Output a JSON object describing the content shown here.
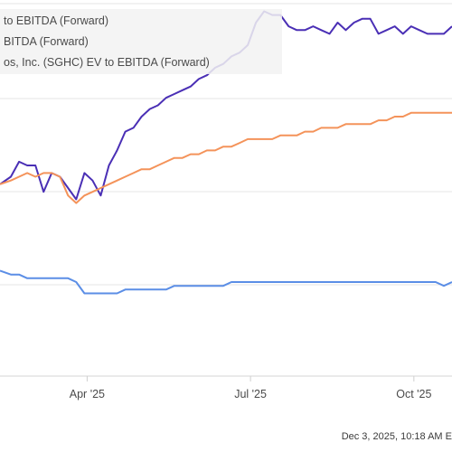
{
  "chart_data": {
    "type": "line",
    "title": "",
    "xlabel": "",
    "ylabel": "",
    "x_tick_labels": [
      "Apr '25",
      "Jul '25",
      "Oct '25"
    ],
    "x_tick_positions": [
      1.6,
      4.6,
      7.6
    ],
    "xlim": [
      0,
      8.3
    ],
    "ylim": [
      0,
      100
    ],
    "grid": "horizontal",
    "legend_placement": "top-left",
    "footer": "Dec 3, 2025, 10:18 AM E",
    "series": [
      {
        "name": "to EBITDA (Forward)",
        "color": "#4a2fb5",
        "x": [
          0,
          0.2,
          0.35,
          0.5,
          0.65,
          0.8,
          0.95,
          1.1,
          1.25,
          1.4,
          1.55,
          1.7,
          1.85,
          2.0,
          2.15,
          2.3,
          2.45,
          2.6,
          2.75,
          2.9,
          3.05,
          3.2,
          3.35,
          3.5,
          3.65,
          3.8,
          3.95,
          4.1,
          4.25,
          4.4,
          4.55,
          4.7,
          4.85,
          5.0,
          5.15,
          5.3,
          5.45,
          5.6,
          5.75,
          5.9,
          6.05,
          6.2,
          6.35,
          6.5,
          6.65,
          6.8,
          6.95,
          7.1,
          7.25,
          7.4,
          7.55,
          7.7,
          7.85,
          8.0,
          8.15,
          8.3
        ],
        "values": [
          51,
          53,
          57,
          56,
          56,
          49,
          54,
          53,
          50,
          47,
          54,
          52,
          48,
          56,
          60,
          65,
          66,
          69,
          71,
          72,
          74,
          75,
          76,
          77,
          79,
          80,
          82,
          83,
          85,
          86,
          88,
          94,
          97,
          96,
          96,
          93,
          92,
          92,
          93,
          92,
          91,
          94,
          92,
          94,
          95,
          95,
          91,
          92,
          93,
          91,
          93,
          92,
          91,
          91,
          91,
          93
        ]
      },
      {
        "name": "BITDA (Forward)",
        "color": "#f4935a",
        "x": [
          0,
          0.2,
          0.35,
          0.5,
          0.65,
          0.8,
          0.95,
          1.1,
          1.25,
          1.4,
          1.55,
          1.7,
          1.85,
          2.0,
          2.15,
          2.3,
          2.45,
          2.6,
          2.75,
          2.9,
          3.05,
          3.2,
          3.35,
          3.5,
          3.65,
          3.8,
          3.95,
          4.1,
          4.25,
          4.4,
          4.55,
          4.7,
          4.85,
          5.0,
          5.15,
          5.3,
          5.45,
          5.6,
          5.75,
          5.9,
          6.05,
          6.2,
          6.35,
          6.5,
          6.65,
          6.8,
          6.95,
          7.1,
          7.25,
          7.4,
          7.55,
          7.7,
          7.85,
          8.0,
          8.15,
          8.3
        ],
        "values": [
          51,
          52,
          53,
          54,
          53,
          54,
          54,
          53,
          48,
          46,
          48,
          49,
          50,
          51,
          52,
          53,
          54,
          55,
          55,
          56,
          57,
          58,
          58,
          59,
          59,
          60,
          60,
          61,
          61,
          62,
          63,
          63,
          63,
          63,
          64,
          64,
          64,
          65,
          65,
          66,
          66,
          66,
          67,
          67,
          67,
          67,
          68,
          68,
          69,
          69,
          70,
          70,
          70,
          70,
          70,
          70
        ]
      },
      {
        "name": "os, Inc. (SGHC) EV to EBITDA (Forward)",
        "color": "#5b8ee6",
        "x": [
          0,
          0.2,
          0.35,
          0.5,
          0.65,
          0.8,
          0.95,
          1.1,
          1.25,
          1.4,
          1.55,
          1.7,
          1.85,
          2.0,
          2.15,
          2.3,
          2.45,
          2.6,
          2.75,
          2.9,
          3.05,
          3.2,
          3.35,
          3.5,
          3.65,
          3.8,
          3.95,
          4.1,
          4.25,
          4.4,
          4.55,
          4.7,
          4.85,
          5.0,
          5.15,
          5.3,
          5.45,
          5.6,
          5.75,
          5.9,
          6.05,
          6.2,
          6.35,
          6.5,
          6.65,
          6.8,
          6.95,
          7.1,
          7.25,
          7.4,
          7.55,
          7.7,
          7.85,
          8.0,
          8.15,
          8.3
        ],
        "values": [
          28,
          27,
          27,
          26,
          26,
          26,
          26,
          26,
          26,
          25,
          22,
          22,
          22,
          22,
          22,
          23,
          23,
          23,
          23,
          23,
          23,
          24,
          24,
          24,
          24,
          24,
          24,
          24,
          25,
          25,
          25,
          25,
          25,
          25,
          25,
          25,
          25,
          25,
          25,
          25,
          25,
          25,
          25,
          25,
          25,
          25,
          25,
          25,
          25,
          25,
          25,
          25,
          25,
          25,
          24,
          25
        ]
      }
    ]
  }
}
